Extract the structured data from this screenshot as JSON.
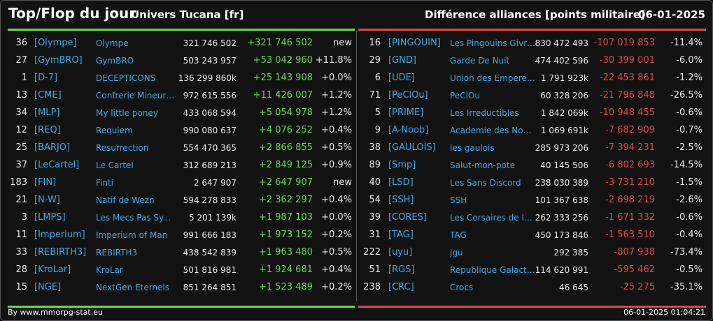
{
  "header": {
    "title": "Top/Flop du jour",
    "subtitle": "Univers Tucana [fr]",
    "right_title": "Différence alliances [points militaire]",
    "date": "06-01-2025"
  },
  "colors": {
    "top_accent": "#5fdc4a",
    "flop_accent": "#e04848",
    "link": "#3fa9e8"
  },
  "top": [
    {
      "rank": "36",
      "tag": "[Olympe]",
      "name": "Olympe",
      "points": "321 746 502",
      "diff": "+321 746 502",
      "pct": "new"
    },
    {
      "rank": "27",
      "tag": "[GymBRO]",
      "name": "GymBRO",
      "points": "503 243 957",
      "diff": "+53 042 960",
      "pct": "+11.8%"
    },
    {
      "rank": "1",
      "tag": "[D-7]",
      "name": "DECEPTICONS",
      "points": "136 299 860k",
      "diff": "+25 143 908",
      "pct": "+0.0%"
    },
    {
      "rank": "13",
      "tag": "[CME]",
      "name": "Confrerie Mineurs ...",
      "points": "972 615 556",
      "diff": "+11 426 007",
      "pct": "+1.2%"
    },
    {
      "rank": "34",
      "tag": "[MLP]",
      "name": "My little poney",
      "points": "433 068 594",
      "diff": "+5 054 978",
      "pct": "+1.2%"
    },
    {
      "rank": "12",
      "tag": "[REQ]",
      "name": "Requiem",
      "points": "990 080 637",
      "diff": "+4 076 252",
      "pct": "+0.4%"
    },
    {
      "rank": "25",
      "tag": "[BARJO]",
      "name": "Resurrection",
      "points": "554 470 365",
      "diff": "+2 866 855",
      "pct": "+0.5%"
    },
    {
      "rank": "37",
      "tag": "[LeCartel]",
      "name": "Le Cartel",
      "points": "312 689 213",
      "diff": "+2 849 125",
      "pct": "+0.9%"
    },
    {
      "rank": "183",
      "tag": "[FIN]",
      "name": "Finti",
      "points": "2 647 907",
      "diff": "+2 647 907",
      "pct": "new"
    },
    {
      "rank": "21",
      "tag": "[N-W]",
      "name": "Natif de Wezn",
      "points": "594 278 833",
      "diff": "+2 362 297",
      "pct": "+0.4%"
    },
    {
      "rank": "3",
      "tag": "[LMPS]",
      "name": "Les Mecs Pas Sy...",
      "points": "5 201 139k",
      "diff": "+1 987 103",
      "pct": "+0.0%"
    },
    {
      "rank": "11",
      "tag": "[Imperium]",
      "name": "Imperium of Man",
      "points": "991 666 183",
      "diff": "+1 973 152",
      "pct": "+0.2%"
    },
    {
      "rank": "33",
      "tag": "[REBIRTH3]",
      "name": "REBIRTH3",
      "points": "438 542 839",
      "diff": "+1 963 480",
      "pct": "+0.5%"
    },
    {
      "rank": "28",
      "tag": "[KroLar]",
      "name": "KroLar",
      "points": "501 816 981",
      "diff": "+1 924 681",
      "pct": "+0.4%"
    },
    {
      "rank": "15",
      "tag": "[NGE]",
      "name": "NextGen Eternels",
      "points": "851 264 851",
      "diff": "+1 523 489",
      "pct": "+0.2%"
    }
  ],
  "flop": [
    {
      "rank": "16",
      "tag": "[PINGOUIN]",
      "name": "Les Pingouins Givre...",
      "points": "830 472 493",
      "diff": "-107 019 853",
      "pct": "-11.4%"
    },
    {
      "rank": "29",
      "tag": "[GND]",
      "name": "Garde De Nuit",
      "points": "474 402 596",
      "diff": "-30 399 001",
      "pct": "-6.0%"
    },
    {
      "rank": "6",
      "tag": "[UDE]",
      "name": "Union des Empereur...",
      "points": "1 791 923k",
      "diff": "-22 453 861",
      "pct": "-1.2%"
    },
    {
      "rank": "71",
      "tag": "[PeClOu]",
      "name": "PeClOu",
      "points": "60 328 206",
      "diff": "-21 796 848",
      "pct": "-26.5%"
    },
    {
      "rank": "5",
      "tag": "[PRIME]",
      "name": "Les Irreductibles",
      "points": "1 842 069k",
      "diff": "-10 948 455",
      "pct": "-0.6%"
    },
    {
      "rank": "9",
      "tag": "[A-Noob]",
      "name": "Academie des Noob...",
      "points": "1 069 691k",
      "diff": "-7 682 909",
      "pct": "-0.7%"
    },
    {
      "rank": "38",
      "tag": "[GAULOIS]",
      "name": "les gaulois",
      "points": "285 973 206",
      "diff": "-7 394 231",
      "pct": "-2.5%"
    },
    {
      "rank": "89",
      "tag": "[Smp]",
      "name": "Salut-mon-pote",
      "points": "40 145 506",
      "diff": "-6 802 693",
      "pct": "-14.5%"
    },
    {
      "rank": "40",
      "tag": "[LSD]",
      "name": "Les Sans Discord",
      "points": "238 030 389",
      "diff": "-3 731 210",
      "pct": "-1.5%"
    },
    {
      "rank": "54",
      "tag": "[SSH]",
      "name": "SSH",
      "points": "101 367 638",
      "diff": "-2 698 219",
      "pct": "-2.6%"
    },
    {
      "rank": "39",
      "tag": "[CORES]",
      "name": "Les Corsaires de l_...",
      "points": "262 333 256",
      "diff": "-1 671 332",
      "pct": "-0.6%"
    },
    {
      "rank": "31",
      "tag": "[TAG]",
      "name": "TAG",
      "points": "450 173 846",
      "diff": "-1 563 510",
      "pct": "-0.4%"
    },
    {
      "rank": "222",
      "tag": "[uyu]",
      "name": "jgu",
      "points": "292 385",
      "diff": "-807 938",
      "pct": "-73.4%"
    },
    {
      "rank": "51",
      "tag": "[RGS]",
      "name": "Republique Galacti...",
      "points": "114 620 991",
      "diff": "-595 462",
      "pct": "-0.5%"
    },
    {
      "rank": "238",
      "tag": "[CRC]",
      "name": "Crocs",
      "points": "46 645",
      "diff": "-25 275",
      "pct": "-35.1%"
    }
  ],
  "footer": {
    "source": "By www.mmorpg-stat.eu",
    "timestamp": "06-01-2025 01:04:21"
  }
}
